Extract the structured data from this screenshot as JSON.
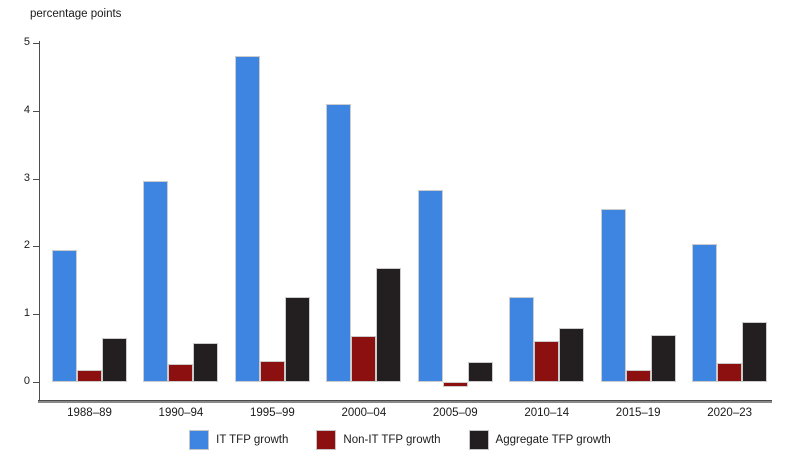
{
  "chart_data": {
    "type": "bar",
    "title": "",
    "ylabel": "percentage points",
    "xlabel": "",
    "ylim": [
      0,
      5
    ],
    "yticks": [
      0,
      1,
      2,
      3,
      4,
      5
    ],
    "grid": false,
    "legend_position": "bottom",
    "categories": [
      "1988–89",
      "1990–94",
      "1995–99",
      "2000–04",
      "2005–09",
      "2010–14",
      "2015–19",
      "2020–23"
    ],
    "series": [
      {
        "name": "IT TFP growth",
        "color": "#3d85e0",
        "values": [
          1.95,
          2.97,
          4.81,
          4.1,
          2.83,
          1.26,
          2.55,
          2.04
        ]
      },
      {
        "name": "Non-IT TFP growth",
        "color": "#8c1010",
        "values": [
          0.17,
          0.26,
          0.31,
          0.68,
          -0.08,
          0.61,
          0.17,
          0.28
        ]
      },
      {
        "name": "Aggregate TFP growth",
        "color": "#231f20",
        "values": [
          0.65,
          0.58,
          1.26,
          1.68,
          0.29,
          0.79,
          0.7,
          0.89
        ]
      }
    ]
  }
}
